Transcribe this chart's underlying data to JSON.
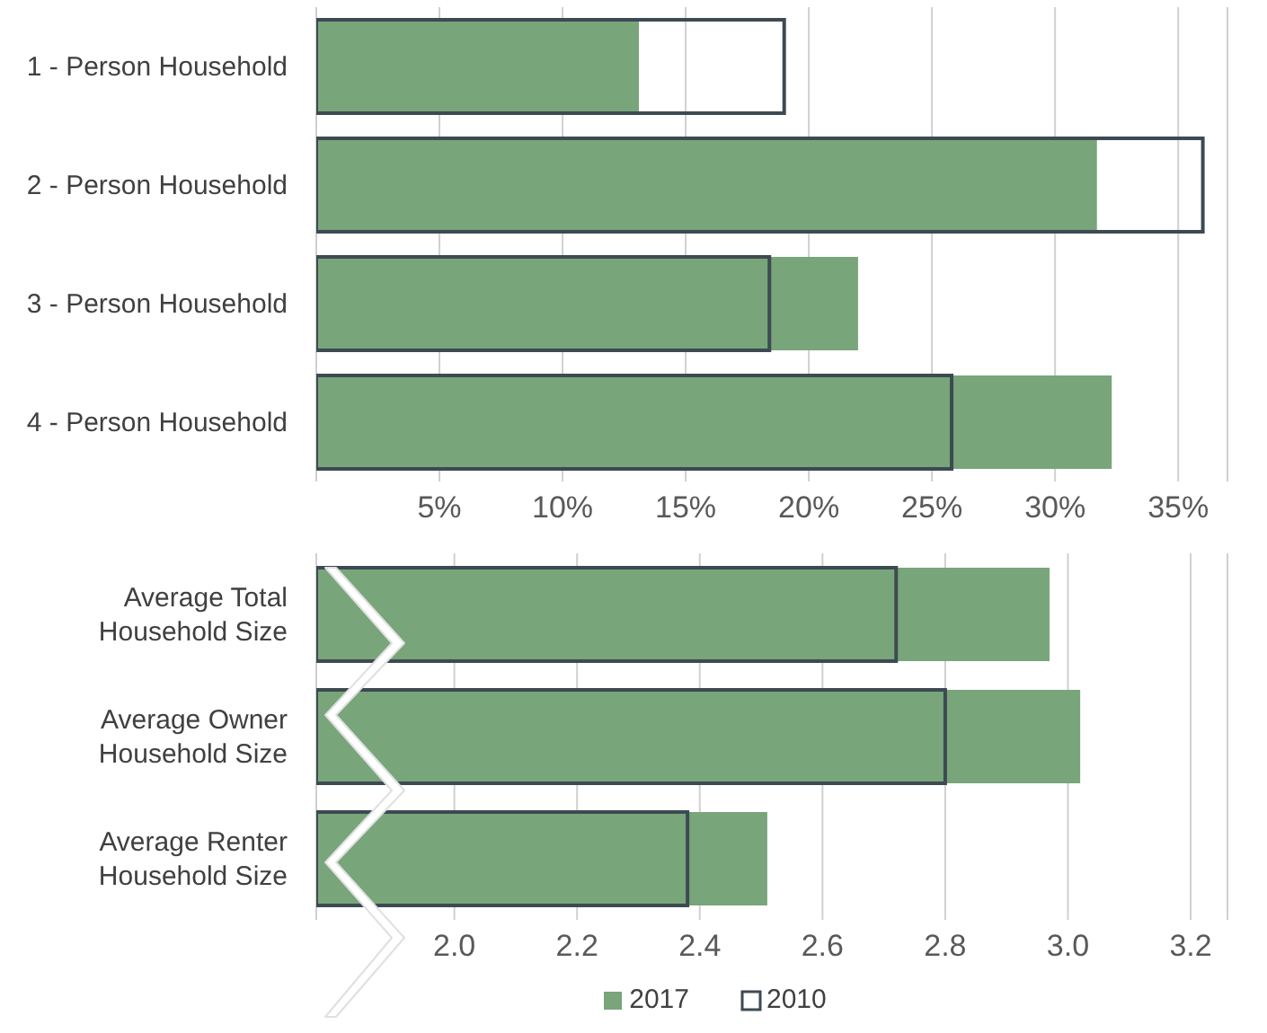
{
  "chart_data": [
    {
      "type": "bar",
      "orientation": "horizontal",
      "categories": [
        "1 - Person Household",
        "2 - Person Household",
        "3 - Person Household",
        "4 - Person Household"
      ],
      "series": [
        {
          "color": "#78a57a",
          "values": [
            13.1,
            31.7,
            22.0,
            32.3
          ]
        },
        {
          "color": "#3d4a52",
          "values": [
            19.0,
            36.0,
            18.4,
            25.8
          ]
        }
      ],
      "xlim": [
        0,
        37
      ],
      "xticks": [
        {
          "value": 5,
          "label": "5%"
        },
        {
          "value": 10,
          "label": "10%"
        },
        {
          "value": 15,
          "label": "15%"
        },
        {
          "value": 20,
          "label": "20%"
        },
        {
          "value": 25,
          "label": "25%"
        },
        {
          "value": 30,
          "label": "30%"
        },
        {
          "value": 35,
          "label": "35%"
        }
      ],
      "grid": "x",
      "legend": false
    },
    {
      "type": "bar",
      "orientation": "horizontal",
      "categories": [
        "Average Total Household Size",
        "Average Owner Household Size",
        "Average Renter Household Size"
      ],
      "series": [
        {
          "name": "2017",
          "color": "#78a57a",
          "values": [
            2.97,
            3.02,
            2.51
          ]
        },
        {
          "name": "2010",
          "color": "#3d4a52",
          "values": [
            2.72,
            2.8,
            2.38
          ]
        }
      ],
      "xlim": [
        1.775,
        3.26
      ],
      "xticks": [
        {
          "value": 2.0,
          "label": "2.0"
        },
        {
          "value": 2.2,
          "label": "2.2"
        },
        {
          "value": 2.4,
          "label": "2.4"
        },
        {
          "value": 2.6,
          "label": "2.6"
        },
        {
          "value": 2.8,
          "label": "2.8"
        },
        {
          "value": 3.0,
          "label": "3.0"
        },
        {
          "value": 3.2,
          "label": "3.2"
        }
      ],
      "grid": "x",
      "legend": "bottom"
    }
  ]
}
